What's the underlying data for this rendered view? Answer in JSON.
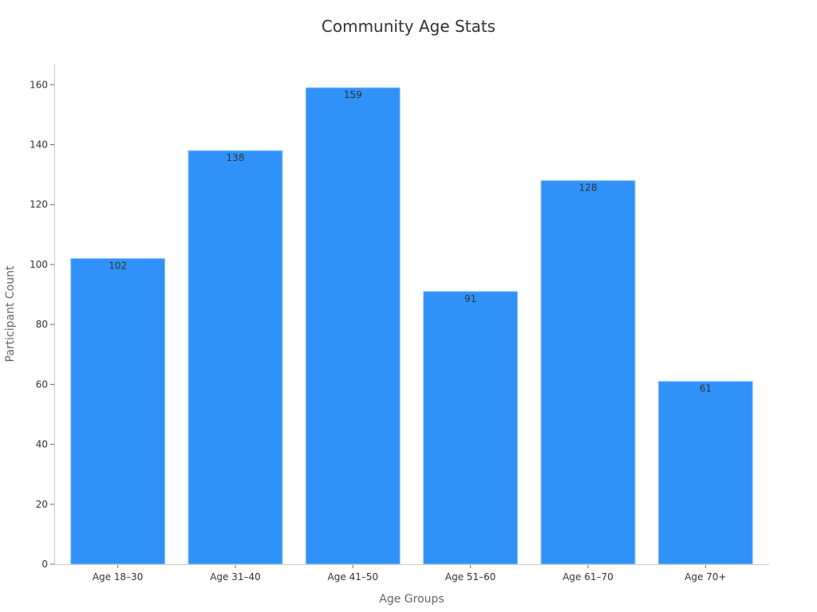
{
  "chart_data": {
    "type": "bar",
    "title": "Community Age Stats",
    "xlabel": "Age Groups",
    "ylabel": "Participant Count",
    "categories": [
      "Age 18–30",
      "Age 31–40",
      "Age 41–50",
      "Age 51–60",
      "Age 61–70",
      "Age 70+"
    ],
    "values": [
      102,
      138,
      159,
      91,
      128,
      61
    ],
    "data_labels": [
      "102",
      "138",
      "159",
      "91",
      "128",
      "61"
    ],
    "ylim": [
      0,
      167
    ],
    "yticks": [
      0,
      20,
      40,
      60,
      80,
      100,
      120,
      140,
      160
    ],
    "ytick_labels": [
      "0",
      "20",
      "40",
      "60",
      "80",
      "100",
      "120",
      "140",
      "160"
    ],
    "grid": false,
    "legend": "none",
    "bar_color": "#3092f8"
  }
}
